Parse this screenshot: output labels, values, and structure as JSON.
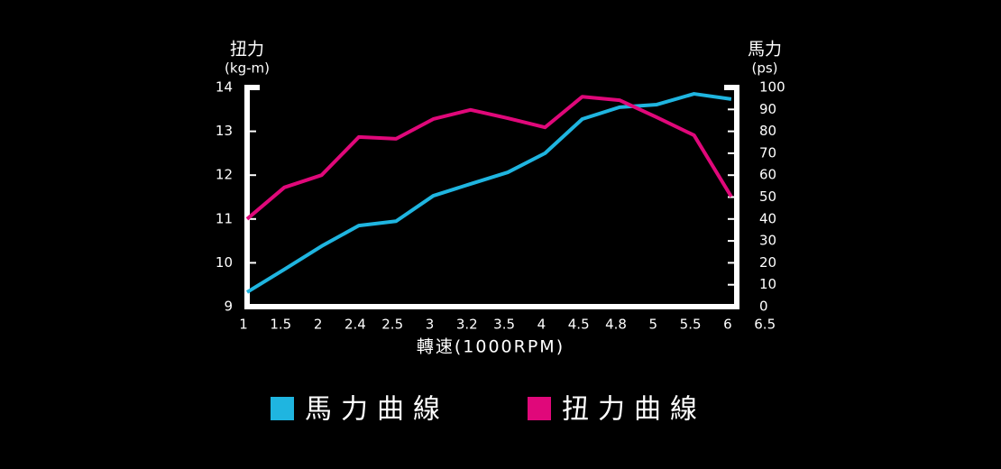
{
  "chart_data": {
    "type": "line",
    "ylabel": [
      "扭力",
      "(kg-m)"
    ],
    "y2label": [
      "馬力",
      "(ps)"
    ],
    "xlabel": "轉速(1000RPM)",
    "categories": [
      "1",
      "1.5",
      "2",
      "2.4",
      "2.5",
      "3",
      "3.2",
      "3.5",
      "4",
      "4.5",
      "4.8",
      "5",
      "5.5",
      "6",
      "6.5"
    ],
    "series": [
      {
        "name": "馬力曲線",
        "color": "#1fb5e0",
        "axis": "y2",
        "values": [
          6.6,
          17,
          27.6,
          37,
          39,
          50.6,
          56,
          61.3,
          70,
          85.6,
          91,
          92.2,
          97.1,
          94.7,
          null
        ]
      },
      {
        "name": "扭力曲線",
        "color": "#e0087a",
        "values": [
          11.0,
          11.72,
          12.0,
          12.87,
          12.83,
          13.28,
          13.49,
          13.3,
          13.09,
          13.79,
          13.71,
          13.32,
          12.91,
          11.51,
          null
        ]
      }
    ],
    "ylim": [
      9,
      14
    ],
    "yticks": [
      9,
      10,
      11,
      12,
      13,
      14
    ],
    "y2lim": [
      0,
      100
    ],
    "y2ticks": [
      0,
      10,
      20,
      30,
      40,
      50,
      60,
      70,
      80,
      90,
      100
    ]
  }
}
